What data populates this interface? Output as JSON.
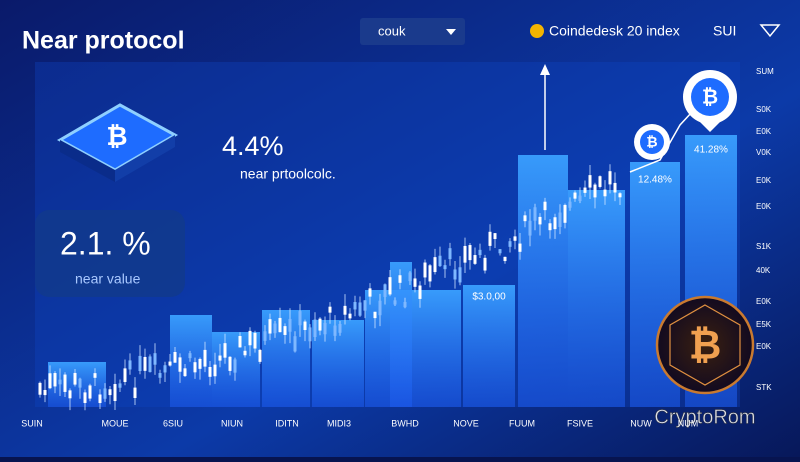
{
  "header": {
    "title": "Near protocol",
    "dropdown": "couk",
    "index_label": "Coindedesk 20 index",
    "ticker": "SUI"
  },
  "stats": {
    "main_change": "4.4%",
    "main_caption": "near prtoolcolc.",
    "card_value": "2.1. %",
    "card_caption": "near value"
  },
  "bar_labels": [
    "$3.0,00",
    "12.48%",
    "41.28%"
  ],
  "right_axis": [
    "SUM",
    "S0K",
    "E0K",
    "V0K",
    "E0K",
    "E0K",
    "S1K",
    "40K",
    "E0K",
    "E5K",
    "E0K",
    "STK"
  ],
  "bottom_axis": [
    "SUIN",
    "MOUE",
    "6SIU",
    "NIUN",
    "IDITN",
    "MIDI3",
    "BWHD",
    "NOVE",
    "FUUM",
    "FSIVE",
    "NUW",
    "NUM"
  ],
  "watermark": "CryptoRom"
}
